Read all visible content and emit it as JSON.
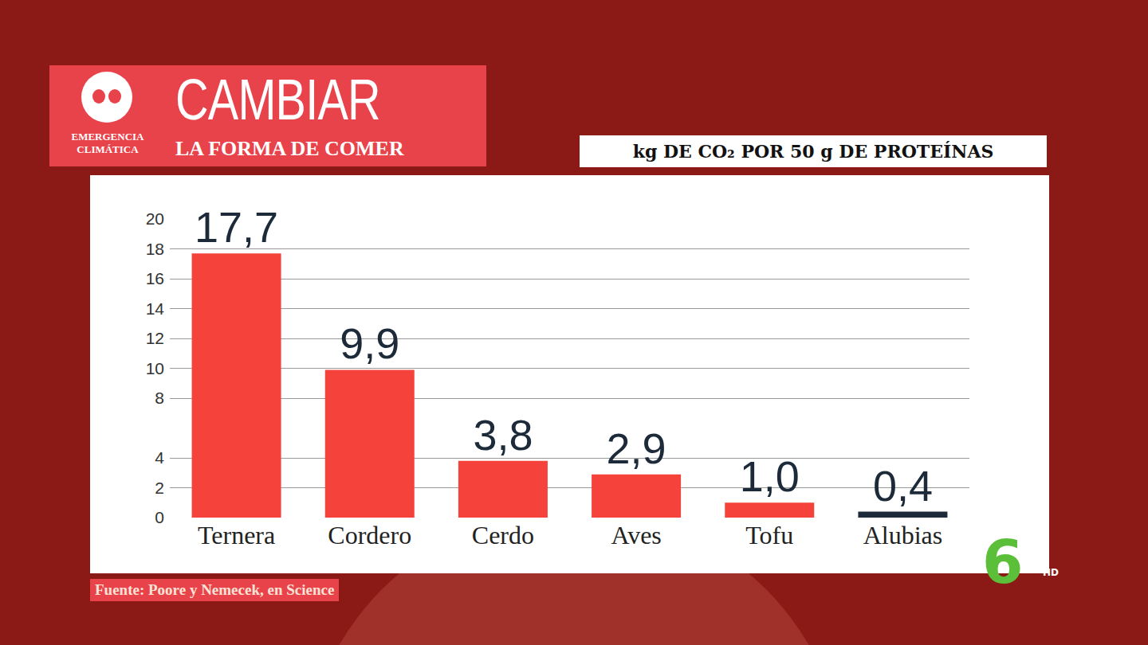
{
  "header": {
    "tag": "EMERGENCIA CLIMÁTICA",
    "title": "CAMBIAR",
    "subtitle": "LA FORMA DE COMER"
  },
  "source": "Fuente: Poore y Nemecek, en Science",
  "logo": {
    "text": "6",
    "suffix": "HD"
  },
  "chart_data": {
    "type": "bar",
    "title": "kg DE CO₂ POR 50 g DE PROTEÍNAS",
    "categories": [
      "Ternera",
      "Cordero",
      "Cerdo",
      "Aves",
      "Tofu",
      "Alubias"
    ],
    "values": [
      17.7,
      9.9,
      3.8,
      2.9,
      1.0,
      0.4
    ],
    "value_labels": [
      "17,7",
      "9,9",
      "3,8",
      "2,9",
      "1,0",
      "0,4"
    ],
    "colors": [
      "#f5423a",
      "#f5423a",
      "#f5423a",
      "#f5423a",
      "#f5423a",
      "#1c2a3a"
    ],
    "ylim": [
      0,
      20
    ],
    "yticks": [
      0,
      2,
      4,
      8,
      10,
      12,
      14,
      16,
      18,
      20
    ],
    "grid": true,
    "data_labels": true
  }
}
